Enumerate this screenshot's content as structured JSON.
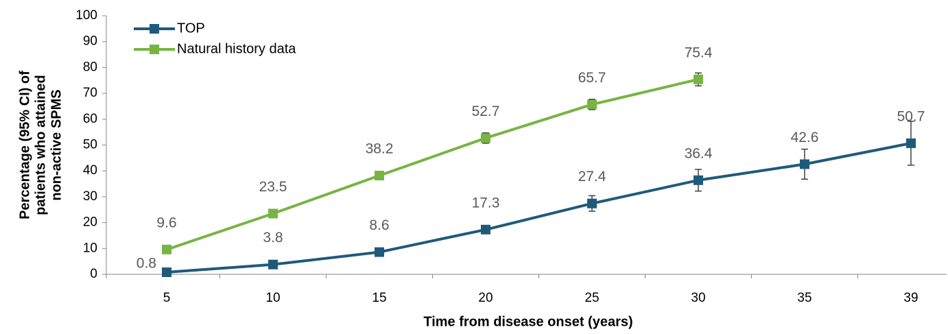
{
  "chart_data": {
    "type": "line",
    "x_label": "Time from disease onset (years)",
    "y_label": [
      "Percentage (95% CI) of",
      "patients who attained",
      "non-active SPMS"
    ],
    "categories": [
      "5",
      "10",
      "15",
      "20",
      "25",
      "30",
      "35",
      "39"
    ],
    "series": [
      {
        "name": "TOP",
        "color": "#1f5a7a",
        "values": [
          0.8,
          3.8,
          8.6,
          17.3,
          27.4,
          36.4,
          42.6,
          50.7
        ],
        "errors": [
          0.5,
          0.8,
          1,
          1.5,
          3,
          4.2,
          5.8,
          8.5
        ]
      },
      {
        "name": "Natural history data",
        "color": "#78b444",
        "values": [
          9.6,
          23.5,
          38.2,
          52.7,
          65.7,
          75.4,
          null,
          null
        ],
        "errors": [
          0.7,
          1,
          1.5,
          2,
          2,
          2.5,
          null,
          null
        ]
      }
    ],
    "ylim": [
      0,
      100
    ],
    "yticks": [
      0,
      10,
      20,
      30,
      40,
      50,
      60,
      70,
      80,
      90,
      100
    ],
    "legend": "upper left"
  }
}
